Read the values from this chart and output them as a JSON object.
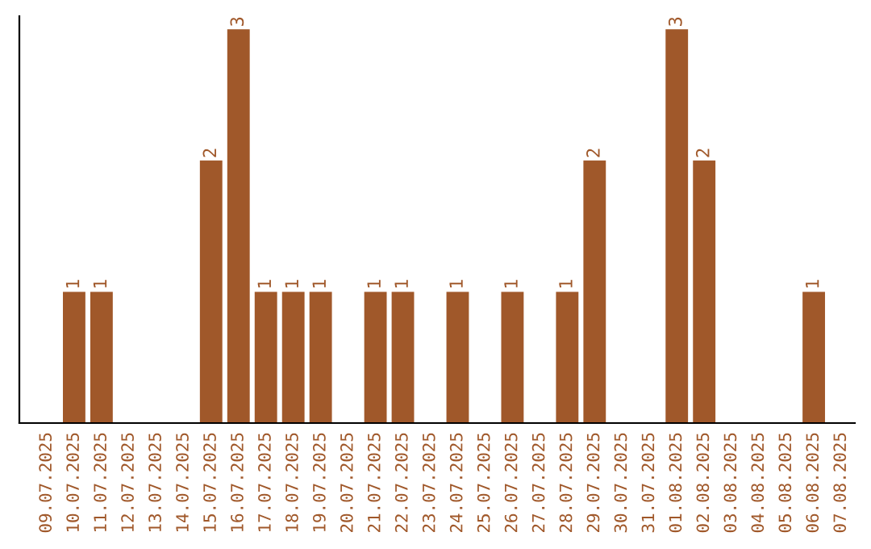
{
  "chart_data": {
    "type": "bar",
    "categories": [
      "09.07.2025",
      "10.07.2025",
      "11.07.2025",
      "12.07.2025",
      "13.07.2025",
      "14.07.2025",
      "15.07.2025",
      "16.07.2025",
      "17.07.2025",
      "18.07.2025",
      "19.07.2025",
      "20.07.2025",
      "21.07.2025",
      "22.07.2025",
      "23.07.2025",
      "24.07.2025",
      "25.07.2025",
      "26.07.2025",
      "27.07.2025",
      "28.07.2025",
      "29.07.2025",
      "30.07.2025",
      "31.07.2025",
      "01.08.2025",
      "02.08.2025",
      "03.08.2025",
      "04.08.2025",
      "05.08.2025",
      "06.08.2025",
      "07.08.2025"
    ],
    "values": [
      0,
      1,
      1,
      0,
      0,
      0,
      2,
      3,
      1,
      1,
      1,
      0,
      1,
      1,
      0,
      1,
      0,
      1,
      0,
      1,
      2,
      0,
      0,
      3,
      2,
      0,
      0,
      0,
      1,
      0
    ],
    "value_labels": [
      null,
      "1",
      "1",
      null,
      null,
      null,
      "2",
      "3",
      "1",
      "1",
      "1",
      null,
      "1",
      "1",
      null,
      "1",
      null,
      "1",
      null,
      "1",
      "2",
      null,
      null,
      "3",
      "2",
      null,
      null,
      null,
      "1",
      null
    ],
    "color": "#a0582a",
    "ylim": [
      0,
      3.1
    ],
    "tick_labels": "x",
    "grid": false,
    "legend": false
  }
}
